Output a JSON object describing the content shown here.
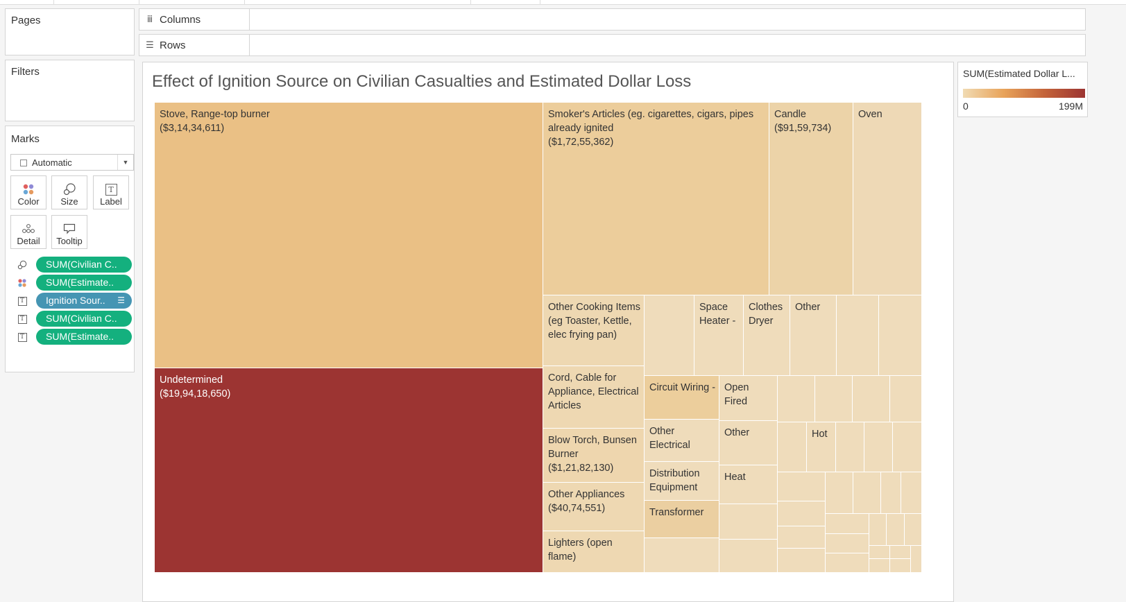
{
  "shelves": {
    "pages_label": "Pages",
    "filters_label": "Filters",
    "columns_label": "Columns",
    "rows_label": "Rows"
  },
  "marks": {
    "title": "Marks",
    "mark_type": "Automatic",
    "buttons": {
      "color": "Color",
      "size": "Size",
      "label": "Label",
      "detail": "Detail",
      "tooltip": "Tooltip"
    },
    "pills": [
      {
        "icon": "size-icon",
        "label": "SUM(Civilian C..",
        "color": "#14b07e"
      },
      {
        "icon": "color-icon",
        "label": "SUM(Estimate..",
        "color": "#14b07e"
      },
      {
        "icon": "label-icon",
        "label": "Ignition Sour..",
        "color": "#4595b3"
      },
      {
        "icon": "label-icon",
        "label": "SUM(Civilian C..",
        "color": "#14b07e"
      },
      {
        "icon": "label-icon",
        "label": "SUM(Estimate..",
        "color": "#14b07e"
      }
    ]
  },
  "viz": {
    "title": "Effect of Ignition Source on Civilian Casualties and Estimated Dollar Loss"
  },
  "legend": {
    "title": "SUM(Estimated Dollar L...",
    "min_label": "0",
    "max_label": "199M",
    "colors": [
      "#f1dbb3",
      "#9c3432"
    ]
  },
  "chart_data": {
    "type": "treemap",
    "title": "Effect of Ignition Source on Civilian Casualties and Estimated Dollar Loss",
    "size_measure": "SUM(Civilian Casualties)",
    "color_measure": "SUM(Estimated Dollar Loss)",
    "color_range": [
      0,
      199000000
    ],
    "items": [
      {
        "label": "Stove, Range-top burner",
        "value_label": "($3,14,34,611)",
        "dollar_loss": 31434611
      },
      {
        "label": "Undetermined",
        "value_label": "($19,94,18,650)",
        "dollar_loss": 199418650
      },
      {
        "label": "Smoker's Articles (eg. cigarettes, cigars, pipes already ignited",
        "value_label": "($1,72,55,362)",
        "dollar_loss": 17255362
      },
      {
        "label": "Candle",
        "value_label": "($91,59,734)",
        "dollar_loss": 9159734
      },
      {
        "label": "Oven",
        "value_label": ""
      },
      {
        "label": "Other Cooking Items (eg Toaster, Kettle, elec frying pan)",
        "value_label": ""
      },
      {
        "label": "Space Heater -",
        "value_label": ""
      },
      {
        "label": "Clothes Dryer",
        "value_label": ""
      },
      {
        "label": "Other",
        "value_label": ""
      },
      {
        "label": "Cord, Cable for Appliance, Electrical Articles",
        "value_label": ""
      },
      {
        "label": "Circuit Wiring -",
        "value_label": ""
      },
      {
        "label": "Open Fired",
        "value_label": ""
      },
      {
        "label": "Other Electrical",
        "value_label": ""
      },
      {
        "label": "Other",
        "value_label": ""
      },
      {
        "label": "Hot",
        "value_label": ""
      },
      {
        "label": "Blow Torch, Bunsen Burner",
        "value_label": "($1,21,82,130)",
        "dollar_loss": 12182130
      },
      {
        "label": "Distribution Equipment",
        "value_label": ""
      },
      {
        "label": "Heat",
        "value_label": ""
      },
      {
        "label": "Other Appliances",
        "value_label": "($40,74,551)",
        "dollar_loss": 4074551
      },
      {
        "label": "Transformer",
        "value_label": ""
      },
      {
        "label": "Lighters (open flame)",
        "value_label": ""
      }
    ]
  }
}
